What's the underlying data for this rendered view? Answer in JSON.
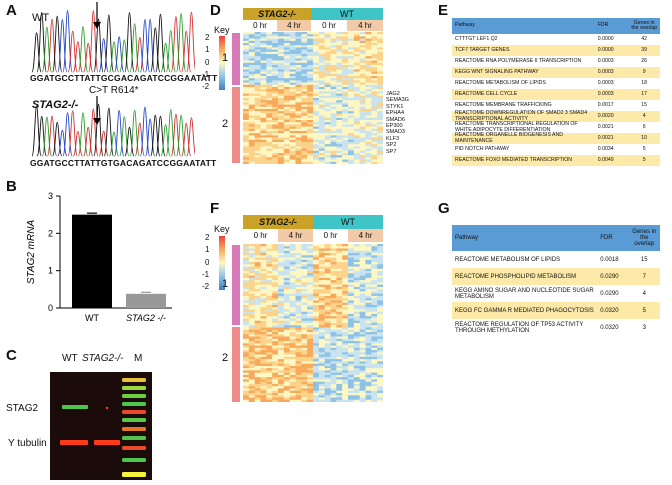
{
  "panels": {
    "A": "A",
    "B": "B",
    "C": "C",
    "D": "D",
    "E": "E",
    "F": "F",
    "G": "G"
  },
  "panelA": {
    "wt_label": "WT",
    "mut_label": "STAG2-/-",
    "mutation": "C>T R614*",
    "wt_seq": "GGATGCCTTATTGCGACAGATCCGGAATATT",
    "mut_seq": "GGATGCCTTATTGTGACAGATCCGGAATATT"
  },
  "panelB": {
    "ylabel": "STAG2 mRNA",
    "chart_data": {
      "type": "bar",
      "categories": [
        "WT",
        "STAG2 -/-"
      ],
      "values": [
        2.5,
        0.38
      ],
      "ylim": [
        0,
        3
      ],
      "yticks": [
        0,
        1,
        2,
        3
      ],
      "ylabel": "STAG2 mRNA",
      "colors": [
        "#000000",
        "#999999"
      ]
    }
  },
  "panelC": {
    "lanes": [
      "WT",
      "STAG2-/-",
      "M"
    ],
    "bands": [
      "STAG2",
      "Y tubulin"
    ]
  },
  "heatmap": {
    "key": "Key",
    "ticks_D": [
      "2",
      "1",
      "0",
      "-1",
      "-2"
    ],
    "ticks_F": [
      "2",
      "1",
      "0",
      "-1",
      "-2"
    ],
    "group_mut": "STAG2-/-",
    "group_wt": "WT",
    "time0": "0 hr",
    "time4": "4 hr",
    "clusters": [
      "1",
      "2"
    ],
    "genes": [
      "JAG2",
      "SEMA3G",
      "STYK1",
      "EPHA4",
      "SMAD6",
      "EP300",
      "SMAD3",
      "KLF3",
      "SP2",
      "SP7"
    ]
  },
  "tableE": {
    "headers": [
      "Pathway",
      "FDR",
      "Genes in the overlap"
    ],
    "rows": [
      [
        "CTTTGT LEF1 Q2",
        "0.0000",
        "42"
      ],
      [
        "TCF7 TARGET GENES",
        "0.0000",
        "39"
      ],
      [
        "REACTOME RNA POLYMERASE II TRANSCRIPTION",
        "0.0003",
        "26"
      ],
      [
        "KEGG WNT SIGNALING PATHWAY",
        "0.0003",
        "9"
      ],
      [
        "REACTOME METABOLISM OF LIPIDS",
        "0.0003",
        "18"
      ],
      [
        "REACTOME CELL CYCLE",
        "0.0003",
        "17"
      ],
      [
        "REACTOME MEMBRANE TRAFFICKING",
        "0.0017",
        "15"
      ],
      [
        "REACTOME DOWNREGULATION OF SMAD2 3 SMAD4 TRANSCRIPTIONAL ACTIVITY",
        "0.0020",
        "4"
      ],
      [
        "REACTOME TRANSCRIPTIONAL REGULATION OF WHITE ADIPOCYTE DIFFERENTIATION",
        "0.0021",
        "6"
      ],
      [
        "REACTOME ORGANELLE BIOGENESIS AND MAINTENANCE",
        "0.0021",
        "10"
      ],
      [
        "PID NOTCH PATHWAY",
        "0.0034",
        "5"
      ],
      [
        "REACTOME FOXO MEDIATED TRANSCRIPTION",
        "0.0049",
        "5"
      ]
    ]
  },
  "tableG": {
    "headers": [
      "Pathway",
      "FDR",
      "Genes in the overlap"
    ],
    "rows": [
      [
        "REACTOME METABOLISM OF LIPIDS",
        "0.0018",
        "15"
      ],
      [
        "REACTOME PHOSPHOLIPID METABOLISM",
        "0.0290",
        "7"
      ],
      [
        "KEGG AMINO SUGAR AND NUCLEOTIDE SUGAR METABOLISM",
        "0.0290",
        "4"
      ],
      [
        "KEGG FC GAMMA R MEDIATED PHAGOCYTOSIS",
        "0.0320",
        "5"
      ],
      [
        "REACTOME REGULATION OF TP53 ACTIVITY THROUGH METHYLATION",
        "0.0320",
        "3"
      ]
    ]
  }
}
